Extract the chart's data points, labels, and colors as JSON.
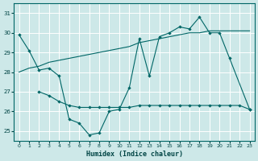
{
  "title": "",
  "xlabel": "Humidex (Indice chaleur)",
  "ylabel": "",
  "background_color": "#cde8e8",
  "grid_color": "#b0d8d8",
  "line_color": "#006666",
  "xlim": [
    -0.5,
    23.5
  ],
  "ylim": [
    24.5,
    31.5
  ],
  "xticks": [
    0,
    1,
    2,
    3,
    4,
    5,
    6,
    7,
    8,
    9,
    10,
    11,
    12,
    13,
    14,
    15,
    16,
    17,
    18,
    19,
    20,
    21,
    22,
    23
  ],
  "yticks": [
    25,
    26,
    27,
    28,
    29,
    30,
    31
  ],
  "series1_x": [
    0,
    1,
    2,
    3,
    4,
    5,
    6,
    7,
    8,
    9,
    10,
    11,
    12,
    13,
    14,
    15,
    16,
    17,
    18,
    19,
    20,
    21,
    23
  ],
  "series1_y": [
    29.9,
    29.1,
    28.1,
    28.2,
    27.8,
    25.6,
    25.4,
    24.8,
    24.9,
    26.0,
    26.1,
    27.2,
    29.7,
    27.8,
    29.8,
    30.0,
    30.3,
    30.2,
    30.8,
    30.0,
    30.0,
    28.7,
    26.1
  ],
  "series2_x": [
    2,
    3,
    4,
    5,
    6,
    7,
    8,
    9,
    10,
    11,
    12,
    13,
    14,
    15,
    16,
    17,
    18,
    19,
    20,
    21,
    22,
    23
  ],
  "series2_y": [
    27.0,
    26.8,
    26.5,
    26.3,
    26.2,
    26.2,
    26.2,
    26.2,
    26.2,
    26.2,
    26.3,
    26.3,
    26.3,
    26.3,
    26.3,
    26.3,
    26.3,
    26.3,
    26.3,
    26.3,
    26.3,
    26.1
  ],
  "series3_x": [
    0,
    1,
    2,
    3,
    4,
    5,
    6,
    7,
    8,
    9,
    10,
    11,
    12,
    13,
    14,
    15,
    16,
    17,
    18,
    19,
    20,
    21,
    22,
    23
  ],
  "series3_y": [
    28.0,
    28.2,
    28.3,
    28.5,
    28.6,
    28.7,
    28.8,
    28.9,
    29.0,
    29.1,
    29.2,
    29.3,
    29.5,
    29.6,
    29.7,
    29.8,
    29.9,
    30.0,
    30.0,
    30.1,
    30.1,
    30.1,
    30.1,
    30.1
  ]
}
